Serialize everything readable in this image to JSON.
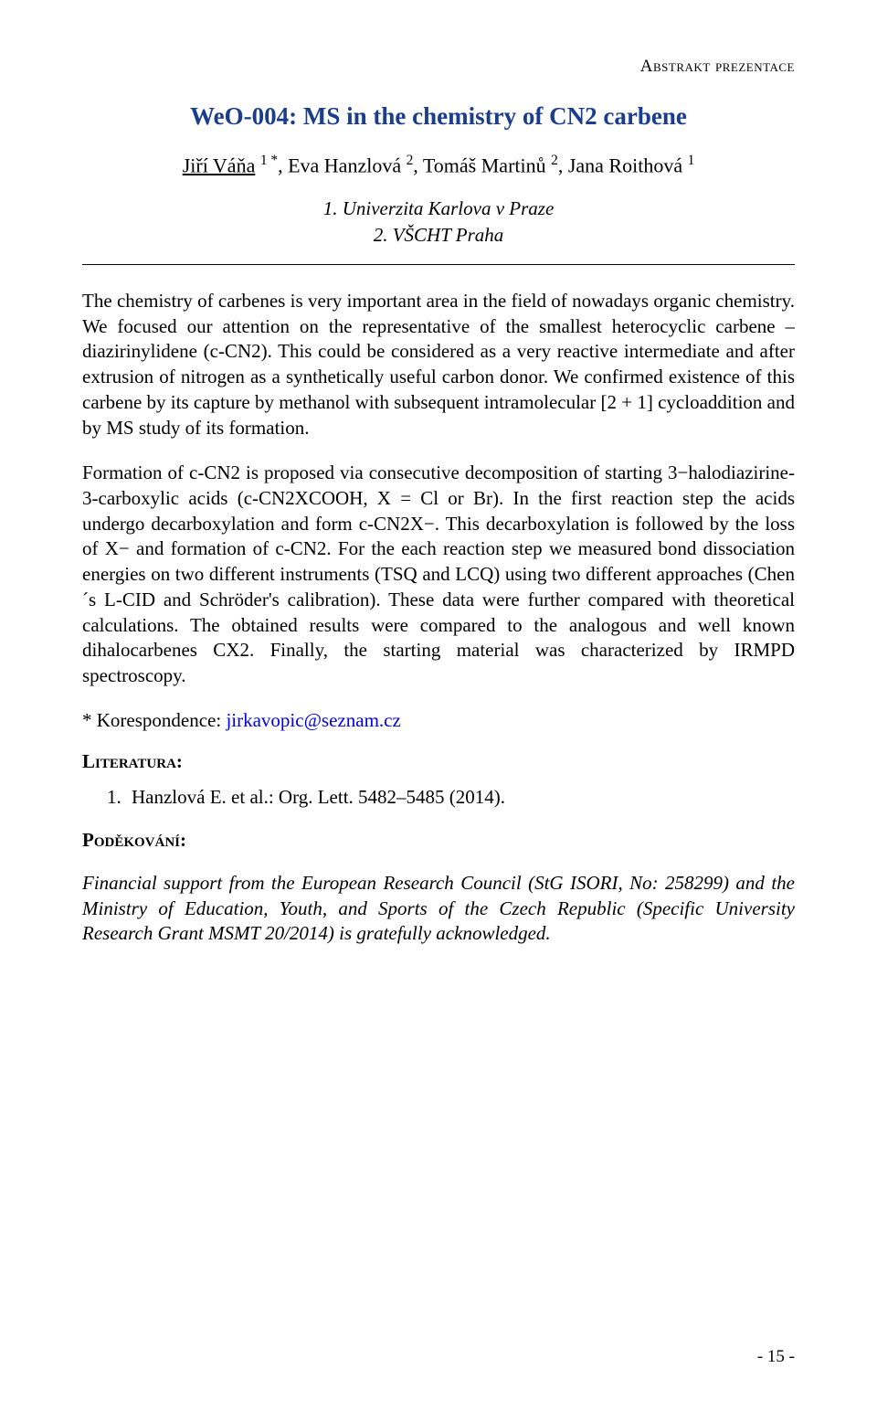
{
  "header": {
    "right": "Abstrakt prezentace"
  },
  "title": {
    "code": "WeO-004:",
    "text": "MS in the chemistry of CN2 carbene"
  },
  "authors": {
    "a1_name": "Jiří Váňa",
    "a1_sup": "1 *",
    "a2_name": "Eva Hanzlová",
    "a2_sup": "2",
    "a3_name": "Tomáš Martinů",
    "a3_sup": "2",
    "a4_name": "Jana Roithová",
    "a4_sup": "1"
  },
  "affiliations": {
    "l1": "1. Univerzita Karlova v Praze",
    "l2": "2. VŠCHT Praha"
  },
  "paragraphs": {
    "p1": "The chemistry of carbenes is very important area in the field of nowadays organic chemistry. We focused our attention on the representative of the smallest heterocyclic carbene – diazirinylidene (c-CN2). This could be considered as a very reactive intermediate and after extrusion of nitrogen as a synthetically useful carbon donor. We confirmed existence of this carbene by its capture by methanol with subsequent intramolecular [2 + 1] cycloaddition and by MS study of its formation.",
    "p2": "Formation of c-CN2 is proposed via consecutive decomposition of starting 3−halodiazirine-3-carboxylic acids (c-CN2XCOOH, X = Cl or Br). In the first reaction step the acids undergo decarboxylation and form c-CN2X−. This decarboxylation is followed by the loss of X− and formation of c-CN2. For the each reaction step we measured bond dissociation energies on two different instruments (TSQ and LCQ) using two different approaches (Chen´s L-CID and Schröder's calibration). These data were further compared with theoretical calculations. The obtained results were compared to the analogous and well known dihalocarbenes CX2. Finally, the starting material was characterized by IRMPD spectroscopy."
  },
  "correspondence": {
    "label": "* Korespondence: ",
    "email": "jirkavopic@seznam.cz"
  },
  "sections": {
    "literatura": "Literatura:",
    "podekovani": "Poděkování:"
  },
  "references": {
    "r1": "Hanzlová E. et al.: Org. Lett. 5482–5485 (2014)."
  },
  "acknowledgement": "Financial support from the European Research Council (StG ISORI, No: 258299) and the Ministry of Education, Youth, and Sports of the Czech Republic (Specific University Research Grant MSMT 20/2014) is gratefully acknowledged.",
  "footer": {
    "page": "- 15 -"
  }
}
